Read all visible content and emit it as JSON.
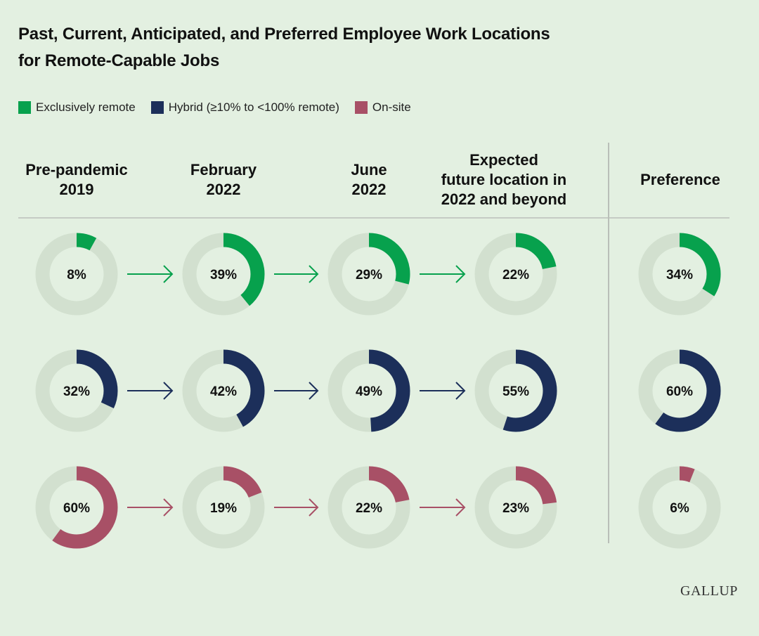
{
  "title_line1": "Past, Current, Anticipated, and Preferred Employee Work Locations",
  "title_line2": "for Remote-Capable Jobs",
  "legend": [
    {
      "label": "Exclusively remote",
      "color": "#07a14d"
    },
    {
      "label": "Hybrid (≥10% to <100% remote)",
      "color": "#1c2f5a"
    },
    {
      "label": "On-site",
      "color": "#a85066"
    }
  ],
  "columns": [
    {
      "line1": "Pre-pandemic",
      "line2": "2019",
      "line3": ""
    },
    {
      "line1": "February",
      "line2": "2022",
      "line3": ""
    },
    {
      "line1": "June",
      "line2": "2022",
      "line3": ""
    },
    {
      "line1": "Expected",
      "line2": "future location in",
      "line3": "2022 and beyond"
    },
    {
      "line1": "Preference",
      "line2": "",
      "line3": ""
    }
  ],
  "logo": "GALLUP",
  "chart_data": {
    "type": "donut-grid",
    "categories": [
      "Pre-pandemic 2019",
      "February 2022",
      "June 2022",
      "Expected future location in 2022 and beyond",
      "Preference"
    ],
    "track_color": "#d2e0cf",
    "series": [
      {
        "name": "Exclusively remote",
        "color": "#07a14d",
        "values": [
          8,
          39,
          29,
          22,
          34
        ]
      },
      {
        "name": "Hybrid (≥10% to <100% remote)",
        "color": "#1c2f5a",
        "values": [
          32,
          42,
          49,
          55,
          60
        ]
      },
      {
        "name": "On-site",
        "color": "#a85066",
        "values": [
          60,
          19,
          22,
          23,
          6
        ]
      }
    ],
    "value_suffix": "%"
  }
}
